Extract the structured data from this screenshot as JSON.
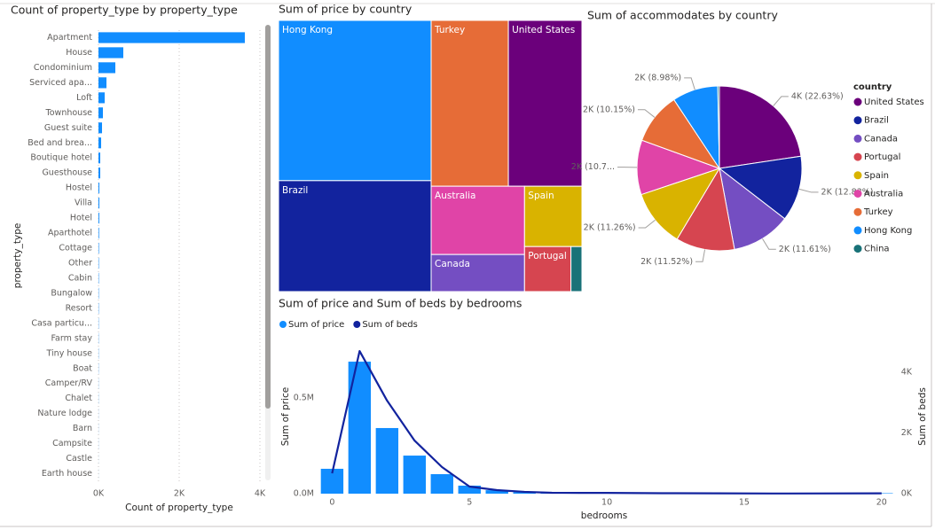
{
  "chart_data": [
    {
      "type": "bar",
      "orientation": "horizontal",
      "title": "Count of property_type by property_type",
      "categories": [
        "Apartment",
        "House",
        "Condominium",
        "Serviced apa...",
        "Loft",
        "Townhouse",
        "Guest suite",
        "Bed and brea...",
        "Boutique hotel",
        "Guesthouse",
        "Hostel",
        "Villa",
        "Hotel",
        "Aparthotel",
        "Cottage",
        "Other",
        "Cabin",
        "Bungalow",
        "Resort",
        "Casa particu...",
        "Farm stay",
        "Tiny house",
        "Boat",
        "Camper/RV",
        "Chalet",
        "Nature lodge",
        "Barn",
        "Campsite",
        "Castle",
        "Earth house"
      ],
      "values": [
        3626,
        615,
        418,
        198,
        154,
        110,
        88,
        66,
        44,
        44,
        22,
        22,
        20,
        15,
        12,
        10,
        9,
        8,
        7,
        6,
        5,
        5,
        4,
        3,
        3,
        2,
        2,
        2,
        1,
        1
      ],
      "color": "#118DFF",
      "xlim": [
        0,
        4000
      ],
      "xticks": [
        {
          "value": 0,
          "label": "0K"
        },
        {
          "value": 2000,
          "label": "2K"
        },
        {
          "value": 4000,
          "label": "4K"
        }
      ],
      "xlabel": "Count of property_type",
      "ylabel": "property_type",
      "grid": true
    },
    {
      "type": "treemap",
      "title": "Sum of price by country",
      "categories": [
        "Hong Kong",
        "Brazil",
        "Turkey",
        "United States",
        "Australia",
        "Canada",
        "Spain",
        "Portugal",
        null
      ],
      "values": [
        445000,
        308000,
        233000,
        222000,
        116000,
        63000,
        63000,
        38000,
        9000
      ],
      "colors": [
        "#118DFF",
        "#12239E",
        "#E66C37",
        "#6B007B",
        "#E044A7",
        "#744EC2",
        "#D9B300",
        "#D64550",
        "#197278"
      ]
    },
    {
      "type": "pie",
      "title": "Sum of accommodates by country",
      "legend_title": "country",
      "categories": [
        "United States",
        "Brazil",
        "Canada",
        "Portugal",
        "Spain",
        "Australia",
        "Turkey",
        "Hong Kong",
        "China"
      ],
      "values": [
        4006,
        2271,
        2055,
        2039,
        1993,
        1893,
        1797,
        1589,
        57
      ],
      "value_labels": [
        "4K (22.63%)",
        "2K (12.83%)",
        "2K (11.61%)",
        "2K (11.52%)",
        "2K (11.26%)",
        "2K (10.7...",
        "2K (10.15%)",
        "2K (8.98%)",
        null
      ],
      "colors": [
        "#6B007B",
        "#12239E",
        "#744EC2",
        "#D64550",
        "#D9B300",
        "#E044A7",
        "#E66C37",
        "#118DFF",
        "#197278"
      ]
    },
    {
      "type": "combo",
      "title": "Sum of price and Sum of beds by bedrooms",
      "x": [
        0,
        1,
        2,
        3,
        4,
        5,
        6,
        7,
        8,
        9,
        10,
        12,
        14,
        16,
        20
      ],
      "series": [
        {
          "name": "Sum of price",
          "color": "#118DFF",
          "type": "bar",
          "values": [
            130000,
            690000,
            343000,
            199000,
            102000,
            42000,
            18000,
            8000,
            4000,
            2500,
            3000,
            800,
            600,
            300,
            2500
          ]
        },
        {
          "name": "Sum of beds",
          "color": "#12239E",
          "type": "line",
          "axis": "y2",
          "values": [
            670,
            4700,
            3066,
            1750,
            876,
            234,
            117,
            60,
            30,
            25,
            25,
            15,
            10,
            5,
            10
          ]
        }
      ],
      "xlim": [
        -0.4,
        20.2
      ],
      "xticks": [
        0,
        5,
        10,
        15,
        20
      ],
      "ylim": [
        0,
        820000
      ],
      "yticks": [
        {
          "value": 0,
          "label": "0.0M"
        },
        {
          "value": 500000,
          "label": "0.5M"
        }
      ],
      "y2lim": [
        0,
        5170
      ],
      "y2ticks": [
        {
          "value": 0,
          "label": "0K"
        },
        {
          "value": 2000,
          "label": "2K"
        },
        {
          "value": 4000,
          "label": "4K"
        }
      ],
      "xlabel": "bedrooms",
      "ylabel": "Sum of price",
      "y2label": "Sum of beds"
    }
  ]
}
